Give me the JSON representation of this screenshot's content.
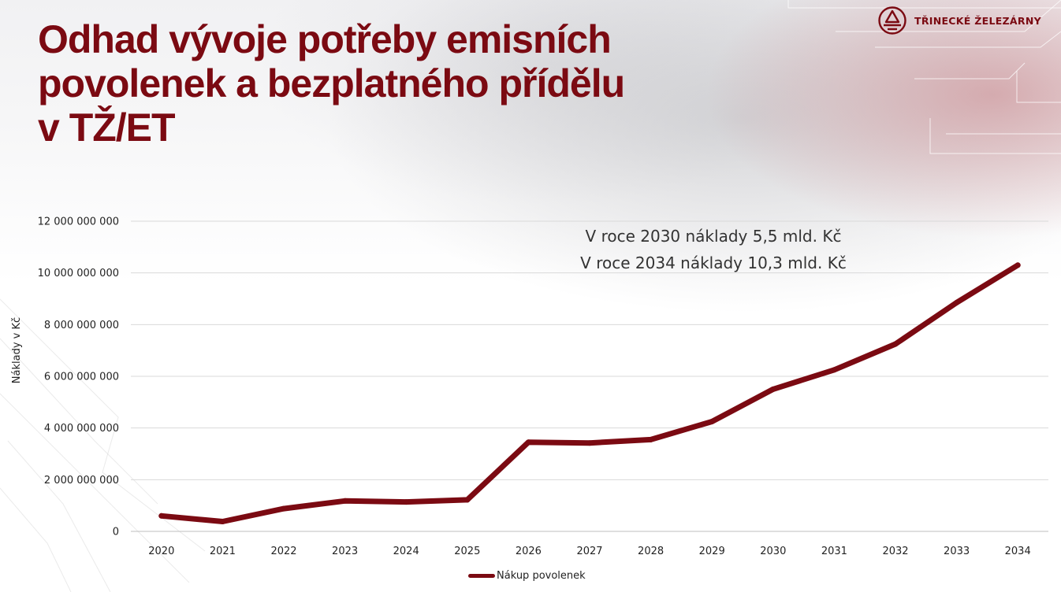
{
  "slide": {
    "title_lines": [
      "Odhad vývoje potřeby emisních",
      "povolenek a bezplatného přídělu",
      "v TŽ/ET"
    ]
  },
  "logo": {
    "text": "TŘINECKÉ ŽELEZÁRNY",
    "icon": "trinecke-zelezarny-logo-icon"
  },
  "annotations": [
    "V roce 2030 náklady 5,5 mld. Kč",
    "V roce 2034 náklady 10,3 mld. Kč"
  ],
  "colors": {
    "accent": "#7b0a12",
    "grid": "#d9d9d9",
    "text": "#222222"
  },
  "chart_data": {
    "type": "line",
    "title": "",
    "xlabel": "",
    "ylabel": "Náklady v Kč",
    "categories": [
      "2020",
      "2021",
      "2022",
      "2023",
      "2024",
      "2025",
      "2026",
      "2027",
      "2028",
      "2029",
      "2030",
      "2031",
      "2032",
      "2033",
      "2034"
    ],
    "series": [
      {
        "name": "Nákup povolenek",
        "color": "#7b0a12",
        "values": [
          600000000,
          380000000,
          880000000,
          1180000000,
          1140000000,
          1220000000,
          3450000000,
          3420000000,
          3550000000,
          4250000000,
          5500000000,
          6250000000,
          7250000000,
          8850000000,
          10300000000
        ]
      }
    ],
    "ylim": [
      0,
      12000000000
    ],
    "yticks": [
      0,
      2000000000,
      4000000000,
      6000000000,
      8000000000,
      10000000000,
      12000000000
    ],
    "ytick_labels": [
      "0",
      "2 000 000 000",
      "4 000 000 000",
      "6 000 000 000",
      "8 000 000 000",
      "10 000 000 000",
      "12 000 000 000"
    ],
    "grid": true,
    "legend": "bottom-center"
  }
}
